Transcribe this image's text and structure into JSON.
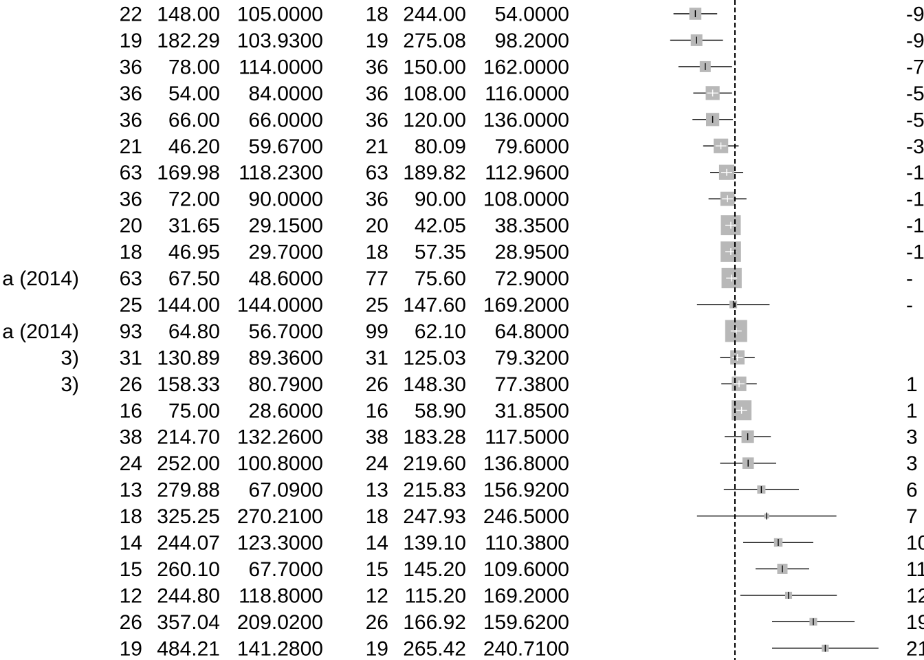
{
  "chart_data": {
    "type": "forest",
    "columns": [
      "n_treatment",
      "mean_treatment",
      "sd_treatment",
      "n_control",
      "mean_control",
      "sd_control",
      "effect_label"
    ],
    "null_value": 0,
    "x_axis_visible": false,
    "studies": [
      {
        "label": "",
        "n1": "22",
        "m1": "148.00",
        "sd1": "105.0000",
        "n2": "18",
        "m2": "244.00",
        "sd2": "54.0000",
        "effect": -96,
        "ci": [
          -149,
          -43
        ],
        "weight": 0.3,
        "effect_label": "-9"
      },
      {
        "label": "",
        "n1": "19",
        "m1": "182.29",
        "sd1": "103.9300",
        "n2": "19",
        "m2": "275.08",
        "sd2": "98.2000",
        "effect": -93,
        "ci": [
          -157,
          -29
        ],
        "weight": 0.28,
        "effect_label": "-9"
      },
      {
        "label": "",
        "n1": "36",
        "m1": "78.00",
        "sd1": "114.0000",
        "n2": "36",
        "m2": "150.00",
        "sd2": "162.0000",
        "effect": -72,
        "ci": [
          -137,
          -7
        ],
        "weight": 0.25,
        "effect_label": "-7"
      },
      {
        "label": "",
        "n1": "36",
        "m1": "54.00",
        "sd1": "84.0000",
        "n2": "36",
        "m2": "108.00",
        "sd2": "116.0000",
        "effect": -54,
        "ci": [
          -101,
          -7
        ],
        "weight": 0.4,
        "effect_label": "-5"
      },
      {
        "label": "",
        "n1": "36",
        "m1": "66.00",
        "sd1": "66.0000",
        "n2": "36",
        "m2": "120.00",
        "sd2": "136.0000",
        "effect": -54,
        "ci": [
          -103,
          -5
        ],
        "weight": 0.36,
        "effect_label": "-5"
      },
      {
        "label": "",
        "n1": "21",
        "m1": "46.20",
        "sd1": "59.6700",
        "n2": "21",
        "m2": "80.09",
        "sd2": "79.6000",
        "effect": -34,
        "ci": [
          -77,
          9
        ],
        "weight": 0.44,
        "effect_label": "-3"
      },
      {
        "label": "",
        "n1": "63",
        "m1": "169.98",
        "sd1": "118.2300",
        "n2": "63",
        "m2": "189.82",
        "sd2": "112.9600",
        "effect": -20,
        "ci": [
          -60,
          20
        ],
        "weight": 0.48,
        "effect_label": "-1"
      },
      {
        "label": "",
        "n1": "36",
        "m1": "72.00",
        "sd1": "90.0000",
        "n2": "36",
        "m2": "90.00",
        "sd2": "108.0000",
        "effect": -18,
        "ci": [
          -64,
          28
        ],
        "weight": 0.42,
        "effect_label": "-1"
      },
      {
        "label": "",
        "n1": "20",
        "m1": "31.65",
        "sd1": "29.1500",
        "n2": "20",
        "m2": "42.05",
        "sd2": "38.3500",
        "effect": -10,
        "ci": [
          -31,
          11
        ],
        "weight": 0.82,
        "effect_label": "-1"
      },
      {
        "label": "",
        "n1": "18",
        "m1": "46.95",
        "sd1": "29.7000",
        "n2": "18",
        "m2": "57.35",
        "sd2": "28.9500",
        "effect": -10,
        "ci": [
          -30,
          10
        ],
        "weight": 0.86,
        "effect_label": "-1"
      },
      {
        "label": "a (2014)",
        "n1": "63",
        "m1": "67.50",
        "sd1": "48.6000",
        "n2": "77",
        "m2": "75.60",
        "sd2": "72.9000",
        "effect": -8,
        "ci": [
          -28,
          12
        ],
        "weight": 0.84,
        "effect_label": "-"
      },
      {
        "label": "",
        "n1": "25",
        "m1": "144.00",
        "sd1": "144.0000",
        "n2": "25",
        "m2": "147.60",
        "sd2": "169.2000",
        "effect": -4,
        "ci": [
          -92,
          84
        ],
        "weight": 0.12,
        "effect_label": "-"
      },
      {
        "label": "a (2014)",
        "n1": "93",
        "m1": "64.80",
        "sd1": "56.7000",
        "n2": "99",
        "m2": "62.10",
        "sd2": "64.8000",
        "effect": 3,
        "ci": [
          -14,
          20
        ],
        "weight": 1.0,
        "effect_label": ""
      },
      {
        "label": "3)",
        "n1": "31",
        "m1": "130.89",
        "sd1": "89.3600",
        "n2": "31",
        "m2": "125.03",
        "sd2": "79.3200",
        "effect": 6,
        "ci": [
          -36,
          48
        ],
        "weight": 0.42,
        "effect_label": ""
      },
      {
        "label": "3)",
        "n1": "26",
        "m1": "158.33",
        "sd1": "80.7900",
        "n2": "26",
        "m2": "148.30",
        "sd2": "77.3800",
        "effect": 10,
        "ci": [
          -33,
          53
        ],
        "weight": 0.44,
        "effect_label": "1"
      },
      {
        "label": "",
        "n1": "16",
        "m1": "75.00",
        "sd1": "28.6000",
        "n2": "16",
        "m2": "58.90",
        "sd2": "31.8500",
        "effect": 16,
        "ci": [
          -5,
          37
        ],
        "weight": 0.82,
        "effect_label": "1"
      },
      {
        "label": "",
        "n1": "38",
        "m1": "214.70",
        "sd1": "132.2600",
        "n2": "38",
        "m2": "183.28",
        "sd2": "117.5000",
        "effect": 31,
        "ci": [
          -25,
          87
        ],
        "weight": 0.32,
        "effect_label": "3"
      },
      {
        "label": "",
        "n1": "24",
        "m1": "252.00",
        "sd1": "100.8000",
        "n2": "24",
        "m2": "219.60",
        "sd2": "136.8000",
        "effect": 32,
        "ci": [
          -36,
          100
        ],
        "weight": 0.27,
        "effect_label": "3"
      },
      {
        "label": "",
        "n1": "13",
        "m1": "279.88",
        "sd1": "67.0900",
        "n2": "13",
        "m2": "215.83",
        "sd2": "156.9200",
        "effect": 64,
        "ci": [
          -27,
          155
        ],
        "weight": 0.14,
        "effect_label": "6"
      },
      {
        "label": "",
        "n1": "18",
        "m1": "325.25",
        "sd1": "270.2100",
        "n2": "18",
        "m2": "247.93",
        "sd2": "246.5000",
        "effect": 77,
        "ci": [
          -92,
          246
        ],
        "weight": 0.05,
        "effect_label": "7"
      },
      {
        "label": "",
        "n1": "14",
        "m1": "244.07",
        "sd1": "123.3000",
        "n2": "14",
        "m2": "139.10",
        "sd2": "110.3800",
        "effect": 105,
        "ci": [
          20,
          190
        ],
        "weight": 0.15,
        "effect_label": "10"
      },
      {
        "label": "",
        "n1": "15",
        "m1": "260.10",
        "sd1": "67.7000",
        "n2": "15",
        "m2": "145.20",
        "sd2": "109.6000",
        "effect": 115,
        "ci": [
          50,
          180
        ],
        "weight": 0.22,
        "effect_label": "11"
      },
      {
        "label": "",
        "n1": "12",
        "m1": "244.80",
        "sd1": "118.8000",
        "n2": "12",
        "m2": "115.20",
        "sd2": "169.2000",
        "effect": 130,
        "ci": [
          13,
          247
        ],
        "weight": 0.1,
        "effect_label": "12"
      },
      {
        "label": "",
        "n1": "26",
        "m1": "357.04",
        "sd1": "209.0200",
        "n2": "26",
        "m2": "166.92",
        "sd2": "159.6200",
        "effect": 190,
        "ci": [
          90,
          290
        ],
        "weight": 0.12,
        "effect_label": "19"
      },
      {
        "label": "",
        "n1": "19",
        "m1": "484.21",
        "sd1": "141.2800",
        "n2": "19",
        "m2": "265.42",
        "sd2": "240.7100",
        "effect": 219,
        "ci": [
          90,
          348
        ],
        "weight": 0.1,
        "effect_label": "21"
      }
    ]
  },
  "colors": {
    "box": "#b8b8b8",
    "line": "#000000",
    "text": "#000000"
  }
}
